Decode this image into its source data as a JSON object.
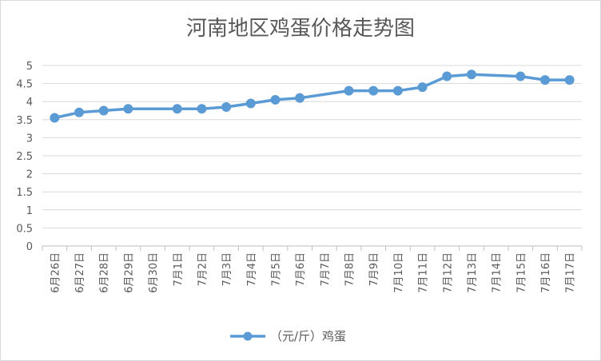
{
  "chart_data": {
    "type": "line",
    "title": "河南地区鸡蛋价格走势图",
    "categories": [
      "6月26日",
      "6月27日",
      "6月28日",
      "6月29日",
      "6月30日",
      "7月1日",
      "7月2日",
      "7月3日",
      "7月4日",
      "7月5日",
      "7月6日",
      "7月7日",
      "7月8日",
      "7月9日",
      "7月10日",
      "7月11日",
      "7月12日",
      "7月13日",
      "7月14日",
      "7月15日",
      "7月16日",
      "7月17日"
    ],
    "series": [
      {
        "name": "（元/斤）鸡蛋",
        "values": [
          3.55,
          3.7,
          3.75,
          3.8,
          null,
          3.8,
          3.8,
          3.85,
          3.95,
          4.05,
          4.1,
          null,
          4.3,
          4.3,
          4.3,
          4.4,
          4.7,
          4.75,
          null,
          4.7,
          4.6,
          4.6
        ],
        "color": "#5b9bd5"
      }
    ],
    "ylim": [
      0,
      5
    ],
    "yticks": [
      "0",
      "0.5",
      "1",
      "1.5",
      "2",
      "2.5",
      "3",
      "3.5",
      "4",
      "4.5",
      "5"
    ],
    "grid": true,
    "legend": "bottom"
  }
}
